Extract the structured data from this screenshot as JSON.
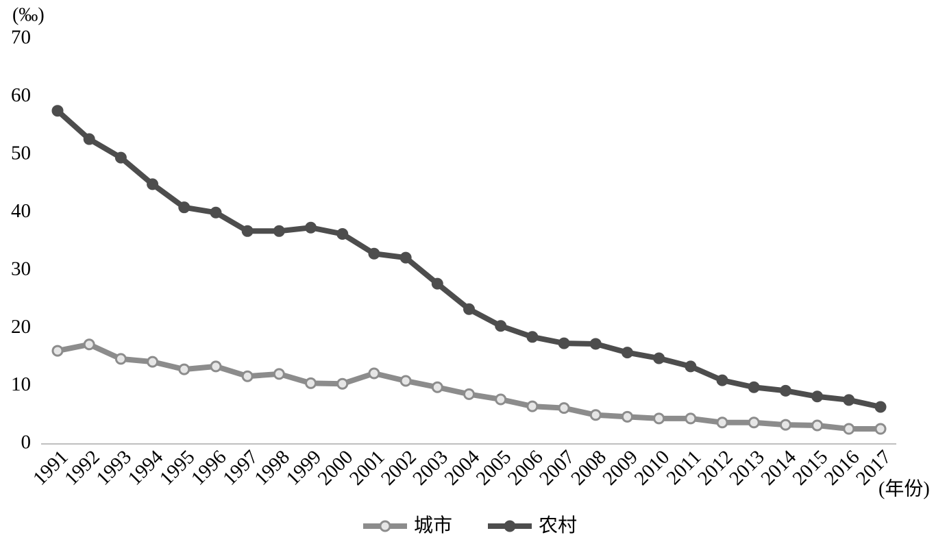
{
  "chart_data": {
    "type": "line",
    "y_label": "(‰)",
    "x_label": "(年份)",
    "categories": [
      "1991",
      "1992",
      "1993",
      "1994",
      "1995",
      "1996",
      "1997",
      "1998",
      "1999",
      "2000",
      "2001",
      "2002",
      "2003",
      "2004",
      "2005",
      "2006",
      "2007",
      "2008",
      "2009",
      "2010",
      "2011",
      "2012",
      "2013",
      "2014",
      "2015",
      "2016",
      "2017"
    ],
    "series": [
      {
        "name": "城市",
        "color": "#8c8c8c",
        "marker": "hollow",
        "values": [
          16.1,
          17.2,
          14.7,
          14.2,
          12.9,
          13.4,
          11.7,
          12.1,
          10.5,
          10.4,
          12.2,
          10.9,
          9.8,
          8.6,
          7.7,
          6.5,
          6.2,
          5.0,
          4.7,
          4.4,
          4.4,
          3.7,
          3.7,
          3.3,
          3.2,
          2.6,
          2.6
        ]
      },
      {
        "name": "农村",
        "color": "#4d4d4d",
        "marker": "filled",
        "values": [
          57.6,
          52.7,
          49.5,
          44.9,
          40.9,
          40.0,
          36.8,
          36.8,
          37.4,
          36.3,
          32.9,
          32.2,
          27.7,
          23.3,
          20.4,
          18.5,
          17.4,
          17.3,
          15.8,
          14.8,
          13.4,
          11.0,
          9.8,
          9.2,
          8.2,
          7.6,
          6.4
        ]
      }
    ],
    "ylim": [
      0,
      70
    ],
    "yticks": [
      0,
      10,
      20,
      30,
      40,
      50,
      60,
      70
    ],
    "grid": false
  }
}
